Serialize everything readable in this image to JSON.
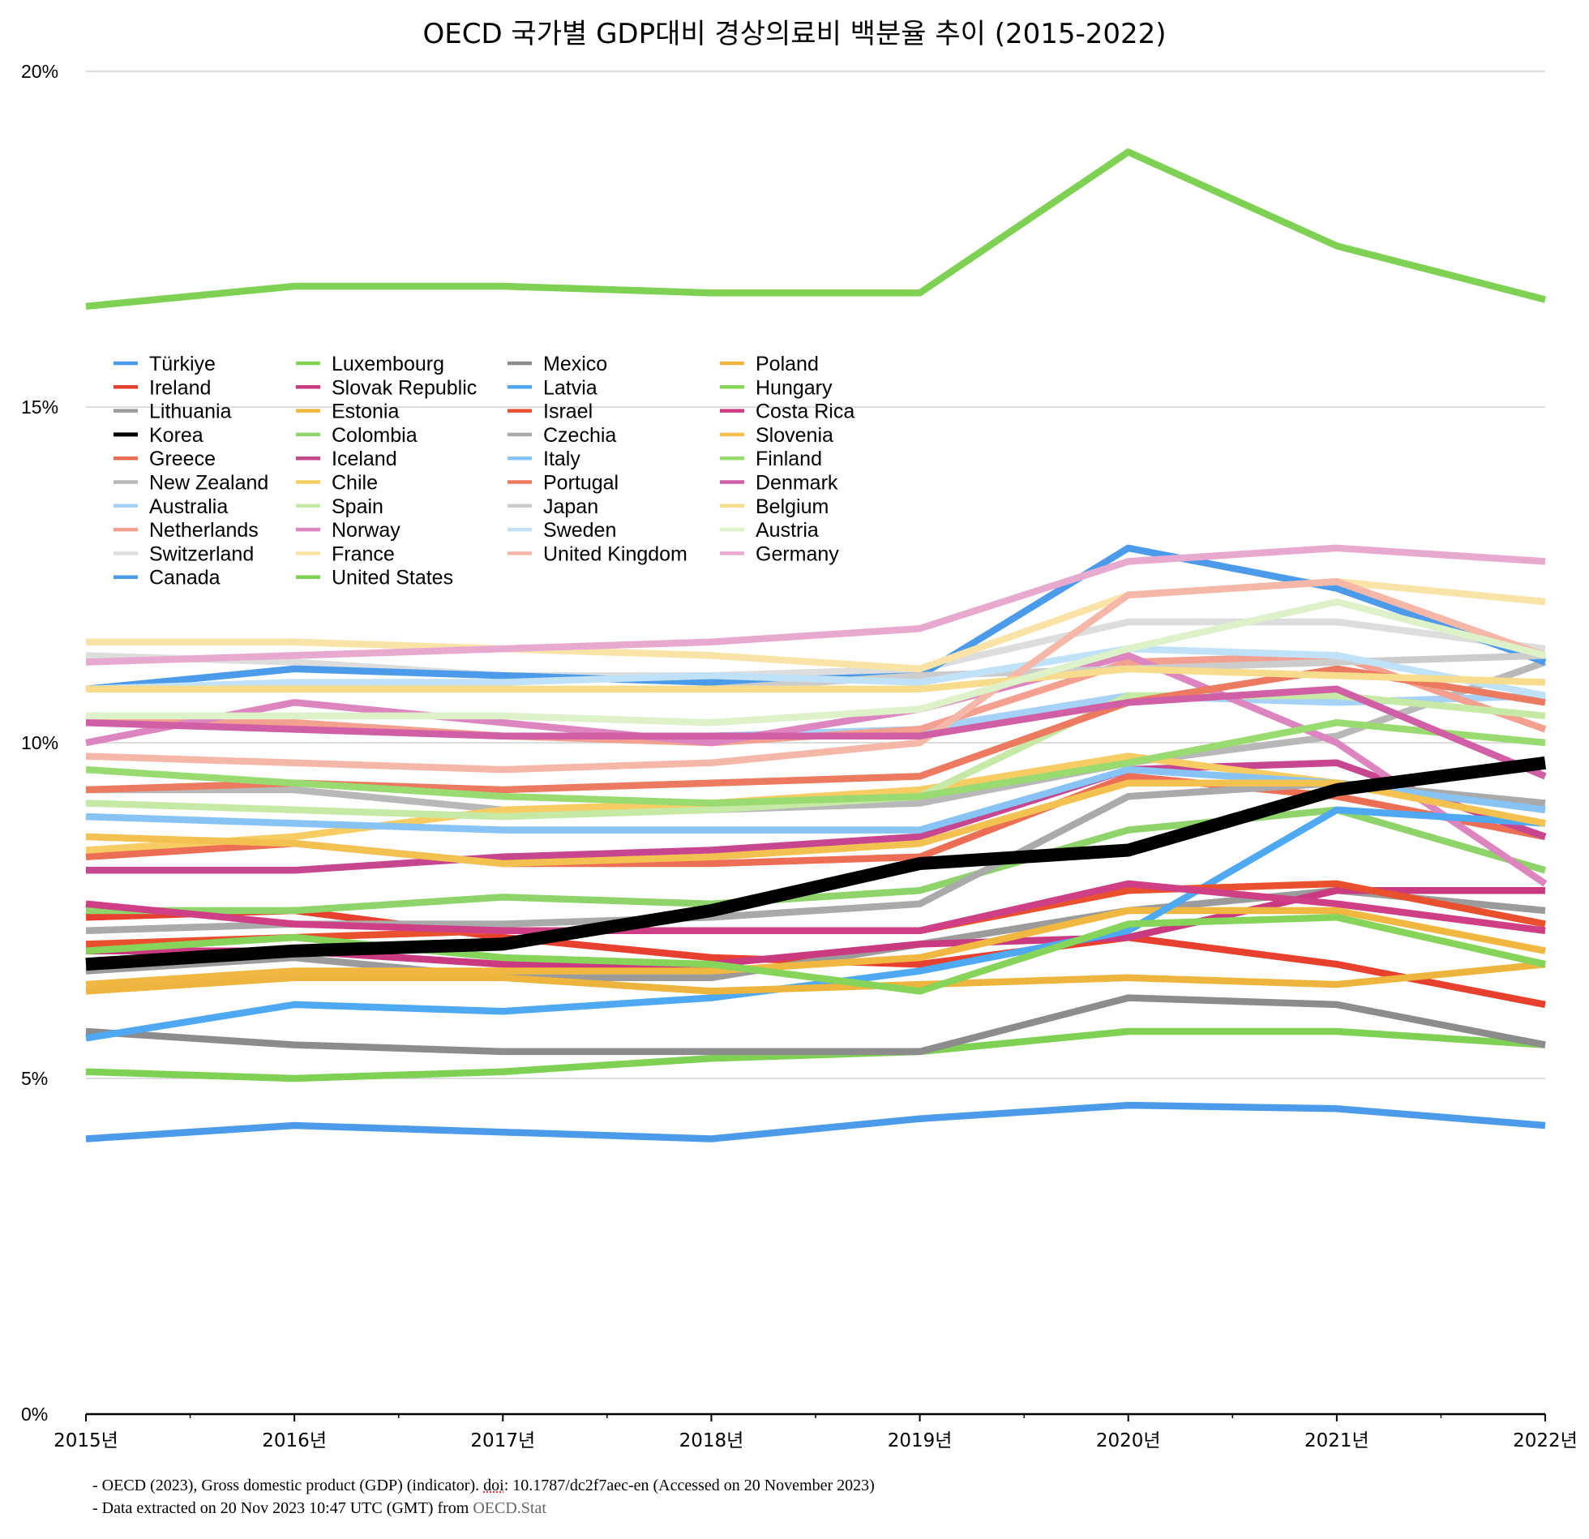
{
  "chart_data": {
    "type": "line",
    "title": "OECD 국가별 GDP대비 경상의료비 백분율 추이 (2015-2022)",
    "xlabel": "",
    "ylabel": "",
    "x": [
      "2015년",
      "2016년",
      "2017년",
      "2018년",
      "2019년",
      "2020년",
      "2021년",
      "2022년"
    ],
    "ylim": [
      0,
      20
    ],
    "yticks": [
      {
        "value": 0,
        "label": "0%"
      },
      {
        "value": 5,
        "label": "5%"
      },
      {
        "value": 10,
        "label": "10%"
      },
      {
        "value": 15,
        "label": "15%"
      },
      {
        "value": 20,
        "label": "20%"
      }
    ],
    "grid": "horizontal",
    "legend_position": "upper-left, inside plot, 4 columns",
    "highlight_series": "Korea",
    "series": [
      {
        "name": "Türkiye",
        "color": "#4C9BEA",
        "values": [
          4.1,
          4.3,
          4.2,
          4.1,
          4.4,
          4.6,
          4.55,
          4.3
        ]
      },
      {
        "name": "Ireland",
        "color": "#E8402E",
        "values": [
          7.4,
          7.5,
          7.1,
          6.8,
          6.7,
          7.1,
          6.7,
          6.1
        ]
      },
      {
        "name": "Lithuania",
        "color": "#9B9B9B",
        "values": [
          6.6,
          6.8,
          6.5,
          6.5,
          7.0,
          7.5,
          7.8,
          7.5
        ]
      },
      {
        "name": "Korea",
        "color": "#000000",
        "values": [
          6.7,
          6.9,
          7.0,
          7.5,
          8.2,
          8.4,
          9.3,
          9.7
        ]
      },
      {
        "name": "Greece",
        "color": "#EC6F55",
        "values": [
          8.3,
          8.5,
          8.2,
          8.2,
          8.3,
          9.5,
          9.2,
          8.6
        ]
      },
      {
        "name": "New Zealand",
        "color": "#B8B8B8",
        "values": [
          9.3,
          9.3,
          9.0,
          9.0,
          9.1,
          9.7,
          10.1,
          11.2
        ]
      },
      {
        "name": "Australia",
        "color": "#A6D2F7",
        "values": [
          10.3,
          10.2,
          10.1,
          10.1,
          10.2,
          10.7,
          10.6,
          10.7
        ]
      },
      {
        "name": "Netherlands",
        "color": "#F3A090",
        "values": [
          10.4,
          10.3,
          10.1,
          10.0,
          10.2,
          11.2,
          11.3,
          10.2
        ]
      },
      {
        "name": "Switzerland",
        "color": "#DDDDDD",
        "values": [
          11.3,
          11.2,
          11.0,
          11.0,
          11.1,
          11.8,
          11.8,
          11.4
        ]
      },
      {
        "name": "Canada",
        "color": "#4C9BEA",
        "values": [
          10.8,
          11.1,
          11.0,
          10.9,
          11.0,
          12.9,
          12.3,
          11.2
        ]
      },
      {
        "name": "Luxembourg",
        "color": "#7ED153",
        "values": [
          5.1,
          5.0,
          5.1,
          5.3,
          5.4,
          5.7,
          5.7,
          5.5
        ]
      },
      {
        "name": "Slovak Republic",
        "color": "#C93A80",
        "values": [
          6.9,
          6.9,
          6.7,
          6.7,
          7.0,
          7.1,
          7.8,
          7.8
        ]
      },
      {
        "name": "Estonia",
        "color": "#F1B841",
        "values": [
          6.4,
          6.6,
          6.6,
          6.6,
          6.8,
          7.5,
          7.5,
          6.9
        ]
      },
      {
        "name": "Colombia",
        "color": "#8FD46A",
        "values": [
          7.5,
          7.5,
          7.7,
          7.6,
          7.8,
          8.7,
          9.0,
          8.1
        ]
      },
      {
        "name": "Iceland",
        "color": "#C64690",
        "values": [
          8.1,
          8.1,
          8.3,
          8.4,
          8.6,
          9.6,
          9.7,
          8.6
        ]
      },
      {
        "name": "Chile",
        "color": "#F7CD63",
        "values": [
          8.4,
          8.6,
          9.0,
          9.1,
          9.3,
          9.8,
          9.4,
          9.0
        ]
      },
      {
        "name": "Spain",
        "color": "#C6E9A6",
        "values": [
          9.1,
          9.0,
          8.9,
          9.0,
          9.2,
          10.7,
          10.7,
          10.4
        ]
      },
      {
        "name": "Norway",
        "color": "#DC85BE",
        "values": [
          10.0,
          10.6,
          10.3,
          10.0,
          10.5,
          11.3,
          10.0,
          7.9
        ]
      },
      {
        "name": "France",
        "color": "#FAE3A7",
        "values": [
          11.5,
          11.5,
          11.4,
          11.3,
          11.1,
          12.2,
          12.4,
          12.1
        ]
      },
      {
        "name": "United States",
        "color": "#7ED153",
        "values": [
          16.5,
          16.8,
          16.8,
          16.7,
          16.7,
          18.8,
          17.4,
          16.6
        ]
      },
      {
        "name": "Mexico",
        "color": "#8C8C8C",
        "values": [
          5.7,
          5.5,
          5.4,
          5.4,
          5.4,
          6.2,
          6.1,
          5.5
        ]
      },
      {
        "name": "Latvia",
        "color": "#4FA9F2",
        "values": [
          5.6,
          6.1,
          6.0,
          6.2,
          6.6,
          7.2,
          9.0,
          8.8
        ]
      },
      {
        "name": "Israel",
        "color": "#E8502E",
        "values": [
          7.0,
          7.1,
          7.2,
          7.2,
          7.2,
          7.8,
          7.9,
          7.3
        ]
      },
      {
        "name": "Czechia",
        "color": "#AAAAAA",
        "values": [
          7.2,
          7.3,
          7.3,
          7.4,
          7.6,
          9.2,
          9.4,
          9.1
        ]
      },
      {
        "name": "Italy",
        "color": "#87C3F5",
        "values": [
          8.9,
          8.8,
          8.7,
          8.7,
          8.7,
          9.6,
          9.4,
          9.0
        ]
      },
      {
        "name": "Portugal",
        "color": "#EB7A61",
        "values": [
          9.3,
          9.4,
          9.3,
          9.4,
          9.5,
          10.6,
          11.1,
          10.6
        ]
      },
      {
        "name": "Japan",
        "color": "#CCCCCC",
        "values": [
          10.8,
          10.8,
          10.8,
          10.8,
          11.0,
          11.1,
          11.2,
          11.3
        ]
      },
      {
        "name": "Sweden",
        "color": "#BFE2F9",
        "values": [
          10.8,
          10.9,
          10.9,
          11.0,
          10.9,
          11.4,
          11.3,
          10.7
        ]
      },
      {
        "name": "United Kingdom",
        "color": "#F5B8A8",
        "values": [
          9.8,
          9.7,
          9.6,
          9.7,
          10.0,
          12.2,
          12.4,
          11.3
        ]
      },
      {
        "name": "Poland",
        "color": "#EDB53E",
        "values": [
          6.3,
          6.5,
          6.5,
          6.3,
          6.4,
          6.5,
          6.4,
          6.7
        ]
      },
      {
        "name": "Hungary",
        "color": "#86D45A",
        "values": [
          6.9,
          7.1,
          6.8,
          6.7,
          6.3,
          7.3,
          7.4,
          6.7
        ]
      },
      {
        "name": "Costa Rica",
        "color": "#CE3F86",
        "values": [
          7.6,
          7.3,
          7.2,
          7.2,
          7.2,
          7.9,
          7.6,
          7.2
        ]
      },
      {
        "name": "Slovenia",
        "color": "#F2C14F",
        "values": [
          8.6,
          8.5,
          8.2,
          8.3,
          8.5,
          9.4,
          9.4,
          8.8
        ]
      },
      {
        "name": "Finland",
        "color": "#9ADB71",
        "values": [
          9.6,
          9.4,
          9.2,
          9.1,
          9.2,
          9.7,
          10.3,
          10.0
        ]
      },
      {
        "name": "Denmark",
        "color": "#D15FA5",
        "values": [
          10.3,
          10.2,
          10.1,
          10.1,
          10.1,
          10.6,
          10.8,
          9.5
        ]
      },
      {
        "name": "Belgium",
        "color": "#F8DC8E",
        "values": [
          10.8,
          10.8,
          10.8,
          10.8,
          10.8,
          11.1,
          11.0,
          10.9
        ]
      },
      {
        "name": "Austria",
        "color": "#DDF2C9",
        "values": [
          10.4,
          10.4,
          10.4,
          10.3,
          10.5,
          11.4,
          12.1,
          11.3
        ]
      },
      {
        "name": "Germany",
        "color": "#E8A9CF",
        "values": [
          11.2,
          11.3,
          11.4,
          11.5,
          11.7,
          12.7,
          12.9,
          12.7
        ]
      }
    ]
  },
  "notes": [
    {
      "pre": "- OECD (2023), Gross domestic product (GDP) (indicator). ",
      "doi": "doi",
      "post": ": 10.1787/dc2f7aec-en (Accessed on 20 November 2023)"
    },
    {
      "pre": "- Data extracted on 20 Nov 2023 10:47 UTC (GMT) from ",
      "link": "OECD.Stat"
    }
  ]
}
